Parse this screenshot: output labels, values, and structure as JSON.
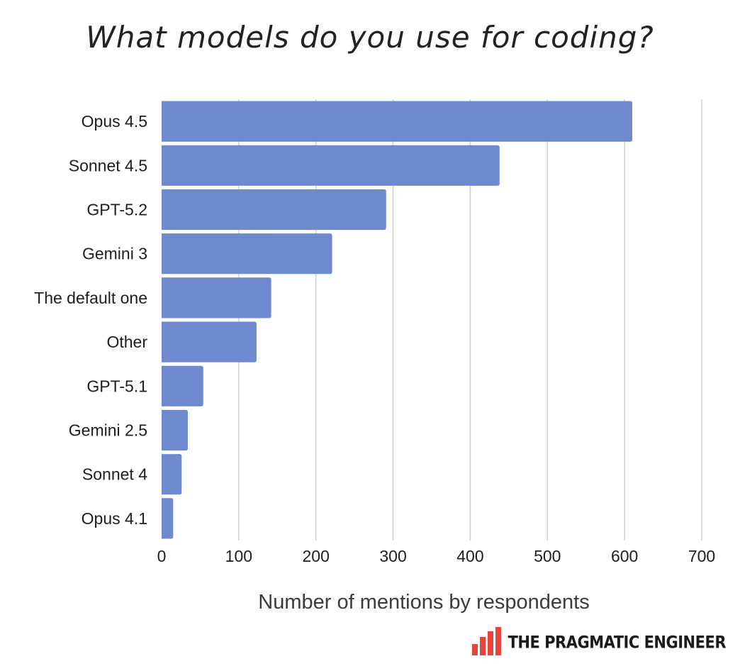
{
  "chart_data": {
    "type": "bar",
    "orientation": "horizontal",
    "title": "What models do you use for coding?",
    "xlabel": "Number of mentions by respondents",
    "ylabel": "",
    "categories": [
      "Opus 4.5",
      "Sonnet 4.5",
      "GPT-5.2",
      "Gemini 3",
      "The default one",
      "Other",
      "GPT-5.1",
      "Gemini 2.5",
      "Sonnet 4",
      "Opus 4.1"
    ],
    "values": [
      610,
      438,
      291,
      221,
      142,
      123,
      54,
      34,
      26,
      15
    ],
    "xlim": [
      0,
      700
    ],
    "xticks": [
      "0",
      "100",
      "200",
      "300",
      "400",
      "500",
      "600",
      "700"
    ],
    "grid": "vertical",
    "bar_color": "#6f89cf",
    "grid_color": "#cfcfcf"
  },
  "brand": {
    "name": "THE PRAGMATIC ENGINEER",
    "icon": "bar-chart-logo-icon",
    "color": "#e8433c"
  }
}
